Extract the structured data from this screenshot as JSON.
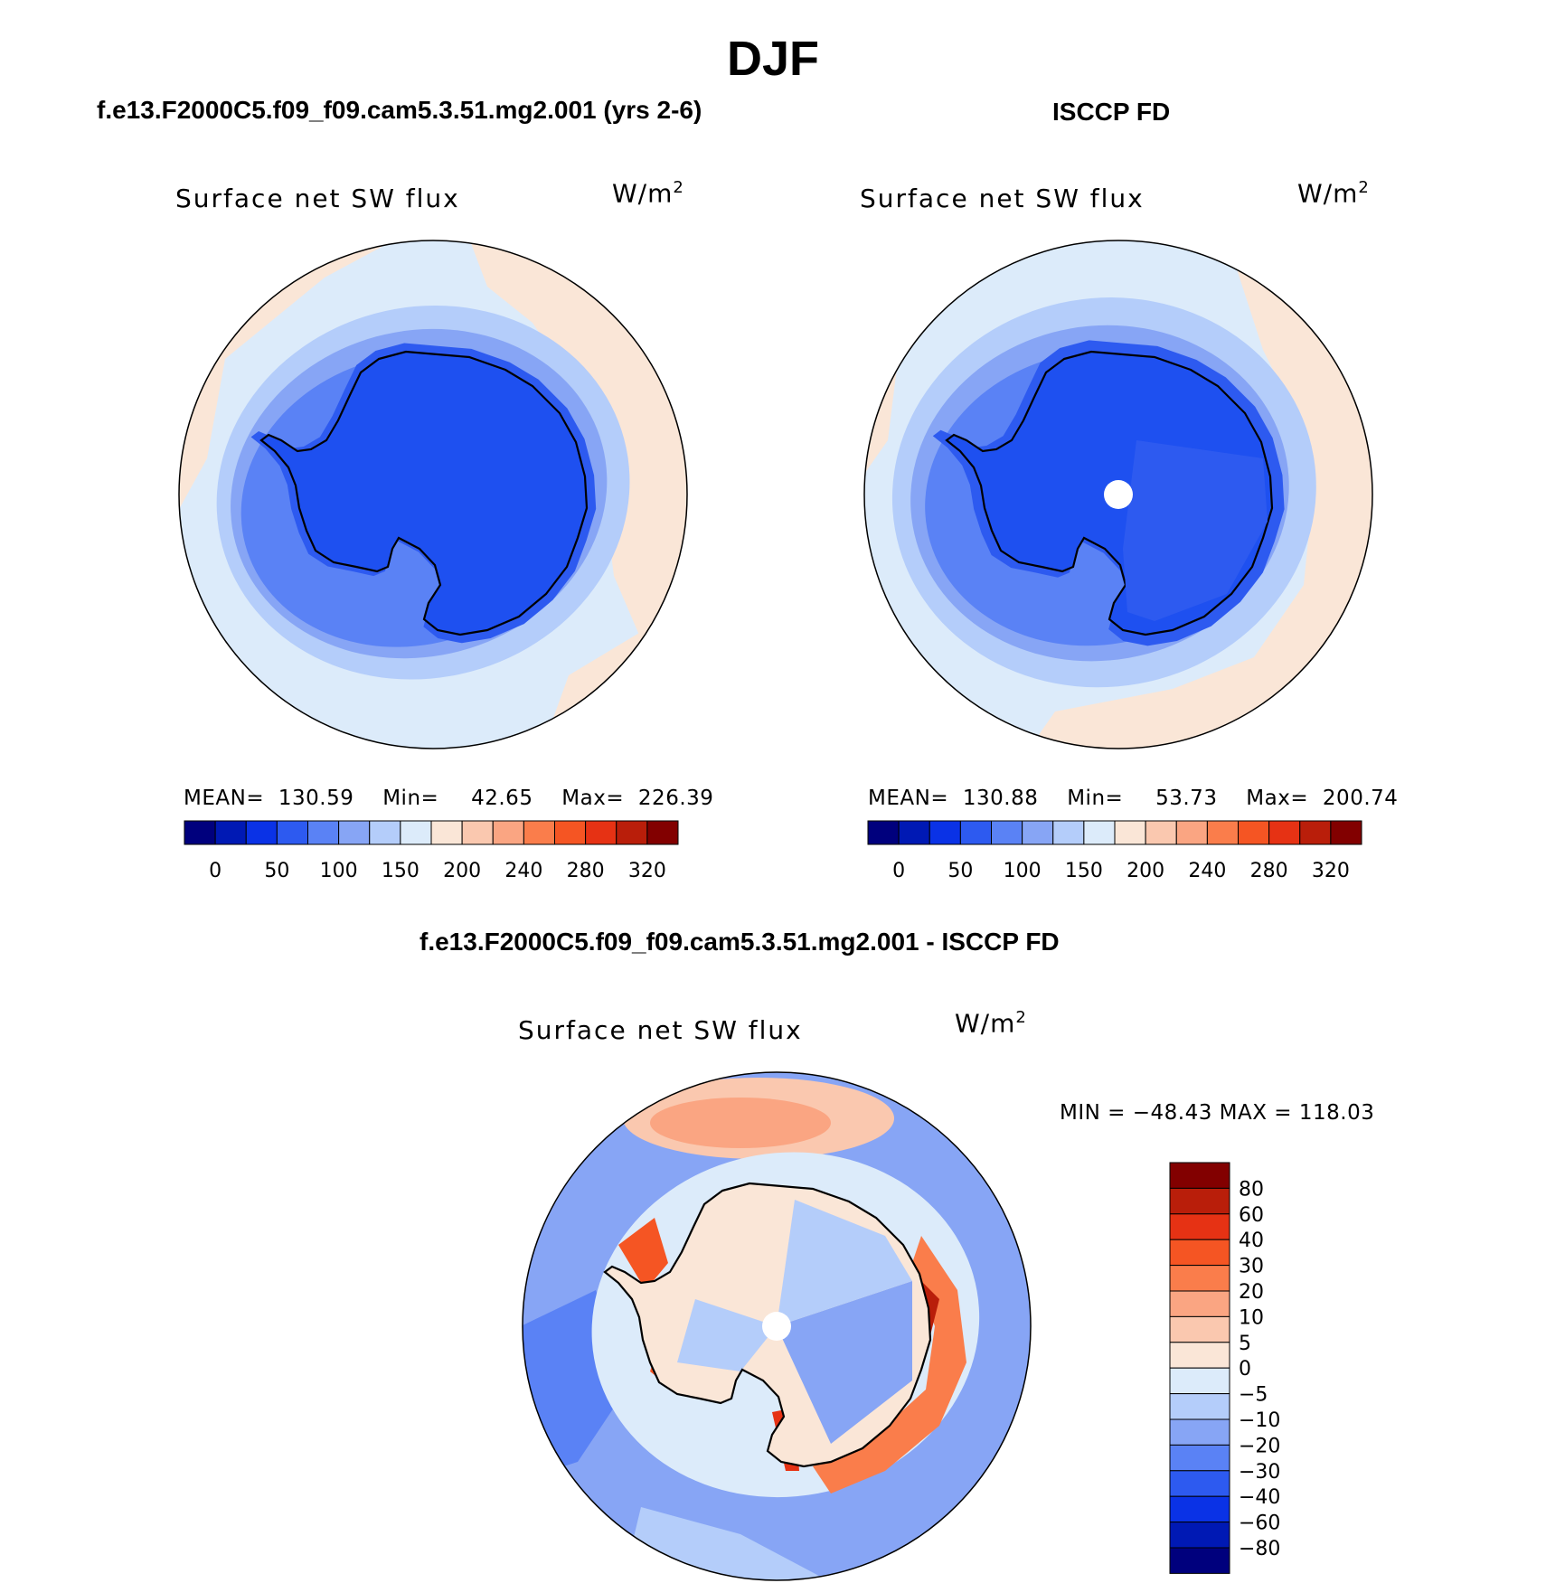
{
  "figure": {
    "season": "DJF",
    "left_title": "f.e13.F2000C5.f09_f09.cam5.3.51.mg2.001 (yrs 2-6)",
    "right_title": "ISCCP FD",
    "diff_title": "f.e13.F2000C5.f09_f09.cam5.3.51.mg2.001 - ISCCP FD"
  },
  "panels": {
    "model": {
      "variable": "Surface net SW flux",
      "units_base": "W/m",
      "units_exp": "2",
      "mean_label": "MEAN=",
      "mean_value": "130.59",
      "min_label": "Min=",
      "min_value": "42.65",
      "max_label": "Max=",
      "max_value": "226.39"
    },
    "obs": {
      "variable": "Surface net SW flux",
      "units_base": "W/m",
      "units_exp": "2",
      "mean_label": "MEAN=",
      "mean_value": "130.88",
      "min_label": "Min=",
      "min_value": "53.73",
      "max_label": "Max=",
      "max_value": "200.74"
    },
    "diff": {
      "variable": "Surface net SW flux",
      "units_base": "W/m",
      "units_exp": "2",
      "minmax": "MIN = −48.43 MAX = 118.03"
    }
  },
  "colorbar_abs": {
    "colors": [
      "#00007d",
      "#0019b4",
      "#0a32e6",
      "#2d5af0",
      "#5a82f5",
      "#87a5f5",
      "#b4cdfa",
      "#dcebfa",
      "#fae6d7",
      "#fac8af",
      "#faa582",
      "#fa7d4b",
      "#f55523",
      "#e63214",
      "#b91e0a",
      "#820000"
    ],
    "labels": [
      "0",
      "50",
      "100",
      "150",
      "200",
      "240",
      "280",
      "320"
    ]
  },
  "colorbar_diff": {
    "colors_top_to_bottom": [
      "#820000",
      "#b91e0a",
      "#e63214",
      "#f55523",
      "#fa7d4b",
      "#faa582",
      "#fac8af",
      "#fae6d7",
      "#dcebfa",
      "#b4cdfa",
      "#87a5f5",
      "#5a82f5",
      "#2d5af0",
      "#0a32e6",
      "#0019b4",
      "#00007d"
    ],
    "labels_top_to_bottom": [
      "80",
      "60",
      "40",
      "30",
      "20",
      "10",
      "5",
      "0",
      "−5",
      "−10",
      "−20",
      "−30",
      "−40",
      "−60",
      "−80"
    ]
  }
}
